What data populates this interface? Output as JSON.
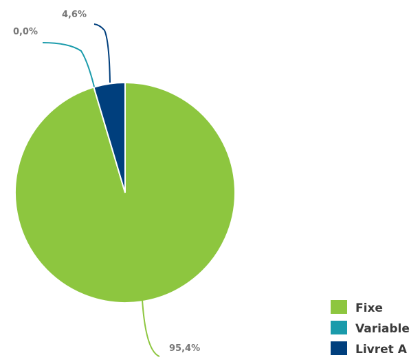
{
  "chart_data": {
    "type": "pie",
    "title": "",
    "slices": [
      {
        "name": "Fixe",
        "value": 95.4,
        "label": "95,4%",
        "color": "#8dc63f"
      },
      {
        "name": "Variable",
        "value": 0.0,
        "label": "0,0%",
        "color": "#1a9bab"
      },
      {
        "name": "Livret A",
        "value": 4.6,
        "label": "4,6%",
        "color": "#003f7d"
      }
    ],
    "legend": {
      "position": "bottom-right",
      "items": [
        "Fixe",
        "Variable",
        "Livret A"
      ]
    }
  }
}
